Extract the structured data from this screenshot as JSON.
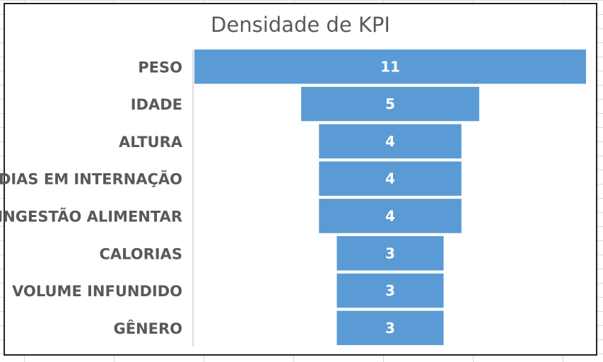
{
  "chart_data": {
    "type": "bar",
    "subtype": "funnel",
    "title": "Densidade de KPI",
    "categories": [
      "PESO",
      "IDADE",
      "ALTURA",
      "DIAS EM INTERNAÇÃO",
      "INGESTÃO ALIMENTAR",
      "CALORIAS",
      "VOLUME INFUNDIDO",
      "GÊNERO"
    ],
    "values": [
      11,
      5,
      4,
      4,
      4,
      3,
      3,
      3
    ],
    "colors": {
      "bar": "#5b9bd5",
      "label": "#ffffff",
      "category": "#595959"
    },
    "grid": false,
    "legend": "none"
  }
}
